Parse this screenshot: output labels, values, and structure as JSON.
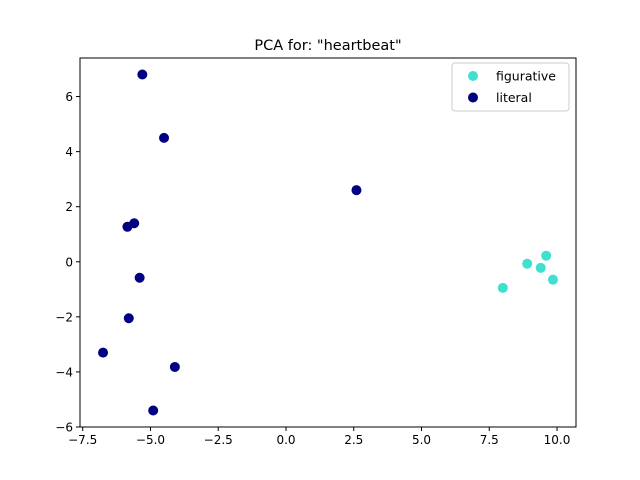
{
  "chart_data": {
    "type": "scatter",
    "title": "PCA for: \"heartbeat\"",
    "xlabel": "",
    "ylabel": "",
    "xlim": [
      -7.6,
      10.7
    ],
    "ylim": [
      -6.0,
      7.4
    ],
    "xticks": [
      -7.5,
      -5.0,
      -2.5,
      0.0,
      2.5,
      5.0,
      7.5,
      10.0
    ],
    "xtick_labels": [
      "−7.5",
      "−5.0",
      "−2.5",
      "0.0",
      "2.5",
      "5.0",
      "7.5",
      "10.0"
    ],
    "yticks": [
      -6,
      -4,
      -2,
      0,
      2,
      4,
      6
    ],
    "ytick_labels": [
      "−6",
      "−4",
      "−2",
      "0",
      "2",
      "4",
      "6"
    ],
    "grid": false,
    "legend_position": "top-right",
    "series": [
      {
        "name": "figurative",
        "color": "#40e0d0",
        "points": [
          {
            "x": 8.0,
            "y": -0.95
          },
          {
            "x": 8.9,
            "y": -0.07
          },
          {
            "x": 9.4,
            "y": -0.22
          },
          {
            "x": 9.6,
            "y": 0.22
          },
          {
            "x": 9.85,
            "y": -0.65
          }
        ]
      },
      {
        "name": "literal",
        "color": "#000080",
        "points": [
          {
            "x": -5.3,
            "y": 6.8
          },
          {
            "x": -4.5,
            "y": 4.5
          },
          {
            "x": 2.6,
            "y": 2.6
          },
          {
            "x": -5.6,
            "y": 1.4
          },
          {
            "x": -5.85,
            "y": 1.27
          },
          {
            "x": -5.4,
            "y": -0.58
          },
          {
            "x": -5.8,
            "y": -2.05
          },
          {
            "x": -6.75,
            "y": -3.3
          },
          {
            "x": -4.1,
            "y": -3.82
          },
          {
            "x": -4.9,
            "y": -5.4
          }
        ]
      }
    ]
  }
}
